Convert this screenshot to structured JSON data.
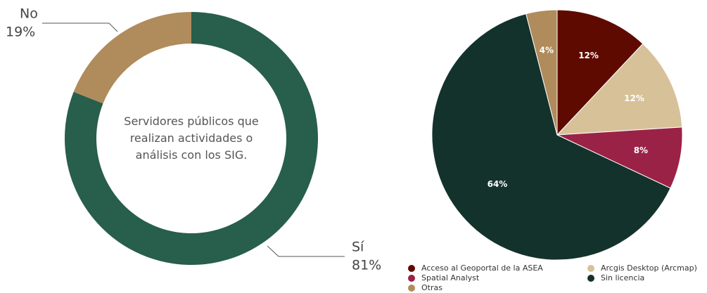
{
  "chart_data": [
    {
      "type": "donut",
      "annotation": "Servidores públicos que realizan actividades o análisis con los SIG.",
      "categories": [
        "Sí",
        "No"
      ],
      "values": [
        81,
        19
      ],
      "value_labels": [
        "81%",
        "19%"
      ],
      "colors": [
        "#275e4c",
        "#b08b5b"
      ]
    },
    {
      "type": "pie",
      "categories": [
        "Acceso al Geoportal de la ASEA",
        "Arcgis Desktop (Arcmap)",
        "Spatial Analyst",
        "Sin licencia",
        "Otras"
      ],
      "values": [
        12,
        12,
        8,
        64,
        4
      ],
      "value_labels": [
        "12%",
        "12%",
        "8%",
        "64%",
        "4%"
      ],
      "colors": [
        "#5f0a00",
        "#d7c199",
        "#9b2247",
        "#13322b",
        "#b08b5b"
      ]
    }
  ]
}
